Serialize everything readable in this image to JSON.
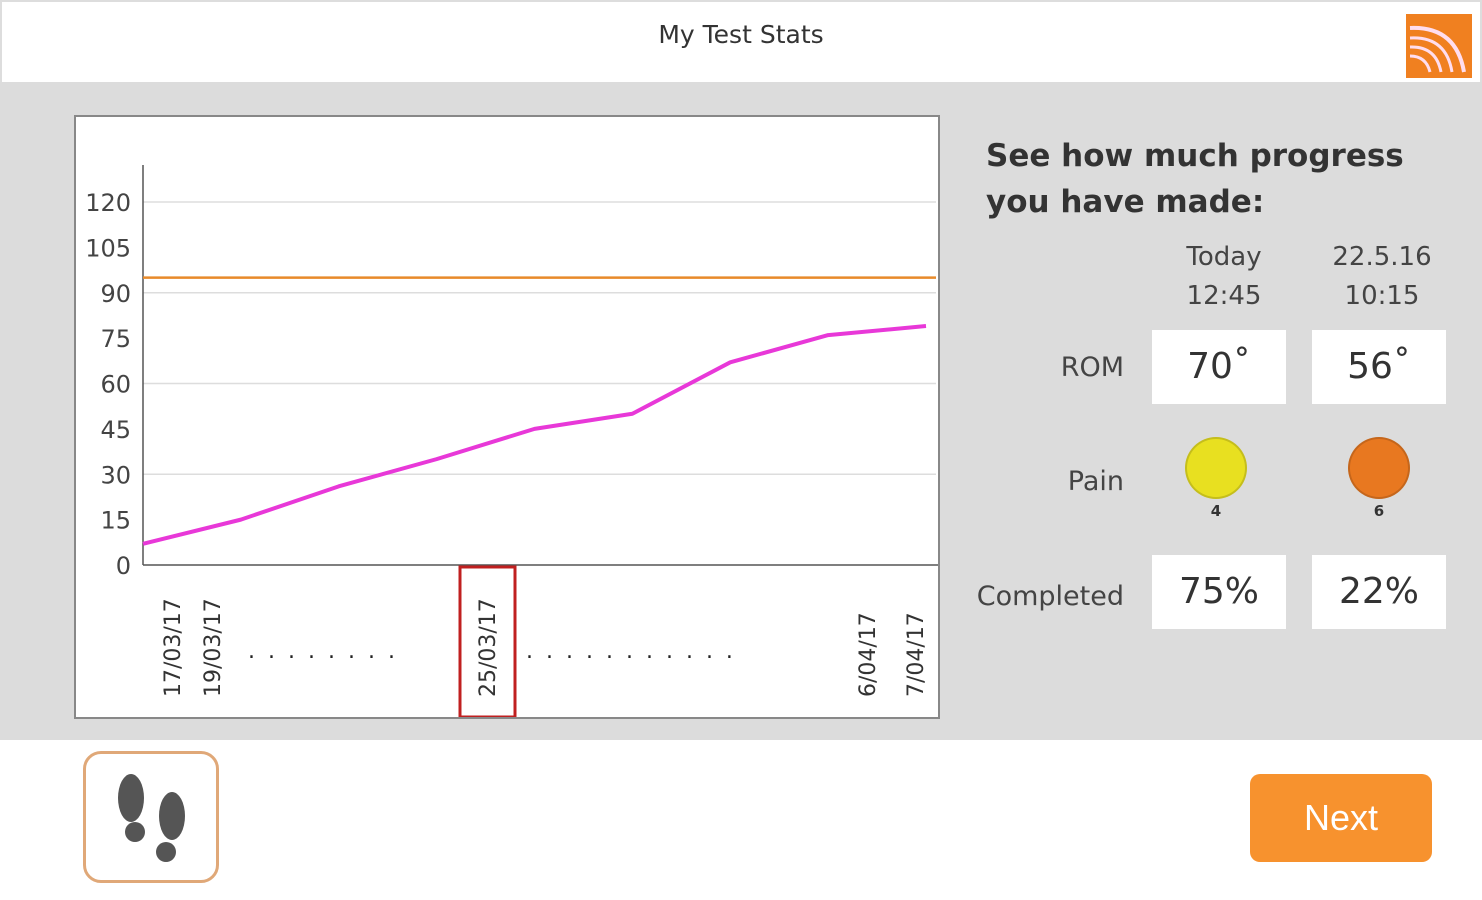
{
  "header": {
    "title": "My Test Stats",
    "logo_icon": "orange-signal-logo"
  },
  "chart_data": {
    "type": "line",
    "ylim": [
      0,
      120
    ],
    "yticks": [
      "120",
      "105",
      "90",
      "75",
      "60",
      "45",
      "30",
      "15",
      "0"
    ],
    "xtick_labels": [
      "17/03/17",
      "19/03/17",
      "25/03/17",
      "6/04/17",
      "7/04/17"
    ],
    "xtick_fillers": [
      "........",
      "..........."
    ],
    "highlighted_tick": "25/03/17",
    "grid": "horizontal",
    "series": [
      {
        "color": "#e838d8",
        "values": [
          7,
          15,
          26,
          35,
          45,
          50,
          67,
          76,
          79
        ]
      },
      {
        "color": "#e88a2a",
        "values": [
          95,
          95
        ]
      }
    ]
  },
  "panel": {
    "heading": "See how much progress you have made:",
    "columns": [
      {
        "line1": "Today",
        "line2": "12:45"
      },
      {
        "line1": "22.5.16",
        "line2": "10:15"
      }
    ],
    "rows": {
      "rom": "ROM",
      "pain": "Pain",
      "completed": "Completed"
    },
    "rom_values": [
      "70˚",
      "56˚"
    ],
    "pain_values": [
      "4",
      "6"
    ],
    "pain_colors": [
      "#e8e020",
      "#e87820"
    ],
    "completed_values": [
      "75%",
      "22%"
    ]
  },
  "footer": {
    "steps_icon": "footprints-icon",
    "next_label": "Next"
  }
}
